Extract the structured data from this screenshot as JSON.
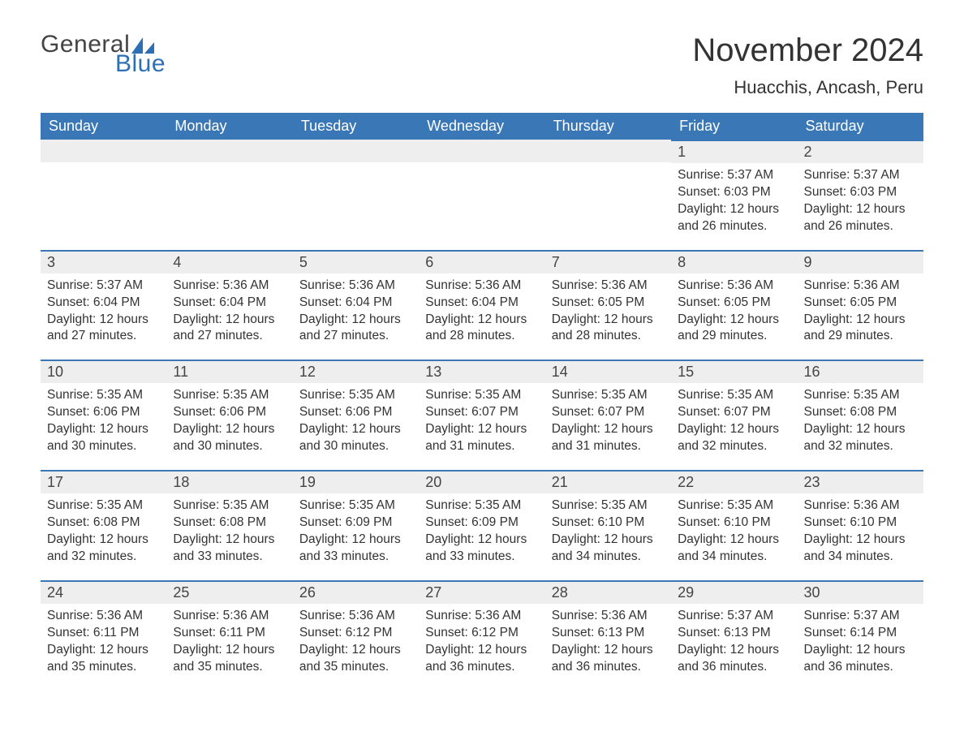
{
  "logo": {
    "text1": "General",
    "text2": "Blue",
    "text_color": "#444444",
    "accent_color": "#2e6fb3"
  },
  "title": "November 2024",
  "location": "Huacchis, Ancash, Peru",
  "colors": {
    "header_bg": "#3a77b7",
    "header_text": "#ffffff",
    "daynum_bg": "#eeeeee",
    "rule": "#3a77b7",
    "body_text": "#333333",
    "page_bg": "#ffffff"
  },
  "fonts": {
    "title_size": 40,
    "location_size": 22,
    "header_size": 18,
    "daynum_size": 18,
    "body_size": 15.5
  },
  "layout": {
    "columns": 7,
    "leading_blanks": 5
  },
  "day_names": [
    "Sunday",
    "Monday",
    "Tuesday",
    "Wednesday",
    "Thursday",
    "Friday",
    "Saturday"
  ],
  "days": [
    {
      "n": 1,
      "sunrise": "5:37 AM",
      "sunset": "6:03 PM",
      "daylight": "12 hours and 26 minutes."
    },
    {
      "n": 2,
      "sunrise": "5:37 AM",
      "sunset": "6:03 PM",
      "daylight": "12 hours and 26 minutes."
    },
    {
      "n": 3,
      "sunrise": "5:37 AM",
      "sunset": "6:04 PM",
      "daylight": "12 hours and 27 minutes."
    },
    {
      "n": 4,
      "sunrise": "5:36 AM",
      "sunset": "6:04 PM",
      "daylight": "12 hours and 27 minutes."
    },
    {
      "n": 5,
      "sunrise": "5:36 AM",
      "sunset": "6:04 PM",
      "daylight": "12 hours and 27 minutes."
    },
    {
      "n": 6,
      "sunrise": "5:36 AM",
      "sunset": "6:04 PM",
      "daylight": "12 hours and 28 minutes."
    },
    {
      "n": 7,
      "sunrise": "5:36 AM",
      "sunset": "6:05 PM",
      "daylight": "12 hours and 28 minutes."
    },
    {
      "n": 8,
      "sunrise": "5:36 AM",
      "sunset": "6:05 PM",
      "daylight": "12 hours and 29 minutes."
    },
    {
      "n": 9,
      "sunrise": "5:36 AM",
      "sunset": "6:05 PM",
      "daylight": "12 hours and 29 minutes."
    },
    {
      "n": 10,
      "sunrise": "5:35 AM",
      "sunset": "6:06 PM",
      "daylight": "12 hours and 30 minutes."
    },
    {
      "n": 11,
      "sunrise": "5:35 AM",
      "sunset": "6:06 PM",
      "daylight": "12 hours and 30 minutes."
    },
    {
      "n": 12,
      "sunrise": "5:35 AM",
      "sunset": "6:06 PM",
      "daylight": "12 hours and 30 minutes."
    },
    {
      "n": 13,
      "sunrise": "5:35 AM",
      "sunset": "6:07 PM",
      "daylight": "12 hours and 31 minutes."
    },
    {
      "n": 14,
      "sunrise": "5:35 AM",
      "sunset": "6:07 PM",
      "daylight": "12 hours and 31 minutes."
    },
    {
      "n": 15,
      "sunrise": "5:35 AM",
      "sunset": "6:07 PM",
      "daylight": "12 hours and 32 minutes."
    },
    {
      "n": 16,
      "sunrise": "5:35 AM",
      "sunset": "6:08 PM",
      "daylight": "12 hours and 32 minutes."
    },
    {
      "n": 17,
      "sunrise": "5:35 AM",
      "sunset": "6:08 PM",
      "daylight": "12 hours and 32 minutes."
    },
    {
      "n": 18,
      "sunrise": "5:35 AM",
      "sunset": "6:08 PM",
      "daylight": "12 hours and 33 minutes."
    },
    {
      "n": 19,
      "sunrise": "5:35 AM",
      "sunset": "6:09 PM",
      "daylight": "12 hours and 33 minutes."
    },
    {
      "n": 20,
      "sunrise": "5:35 AM",
      "sunset": "6:09 PM",
      "daylight": "12 hours and 33 minutes."
    },
    {
      "n": 21,
      "sunrise": "5:35 AM",
      "sunset": "6:10 PM",
      "daylight": "12 hours and 34 minutes."
    },
    {
      "n": 22,
      "sunrise": "5:35 AM",
      "sunset": "6:10 PM",
      "daylight": "12 hours and 34 minutes."
    },
    {
      "n": 23,
      "sunrise": "5:36 AM",
      "sunset": "6:10 PM",
      "daylight": "12 hours and 34 minutes."
    },
    {
      "n": 24,
      "sunrise": "5:36 AM",
      "sunset": "6:11 PM",
      "daylight": "12 hours and 35 minutes."
    },
    {
      "n": 25,
      "sunrise": "5:36 AM",
      "sunset": "6:11 PM",
      "daylight": "12 hours and 35 minutes."
    },
    {
      "n": 26,
      "sunrise": "5:36 AM",
      "sunset": "6:12 PM",
      "daylight": "12 hours and 35 minutes."
    },
    {
      "n": 27,
      "sunrise": "5:36 AM",
      "sunset": "6:12 PM",
      "daylight": "12 hours and 36 minutes."
    },
    {
      "n": 28,
      "sunrise": "5:36 AM",
      "sunset": "6:13 PM",
      "daylight": "12 hours and 36 minutes."
    },
    {
      "n": 29,
      "sunrise": "5:37 AM",
      "sunset": "6:13 PM",
      "daylight": "12 hours and 36 minutes."
    },
    {
      "n": 30,
      "sunrise": "5:37 AM",
      "sunset": "6:14 PM",
      "daylight": "12 hours and 36 minutes."
    }
  ],
  "labels": {
    "sunrise": "Sunrise: ",
    "sunset": "Sunset: ",
    "daylight": "Daylight: "
  }
}
